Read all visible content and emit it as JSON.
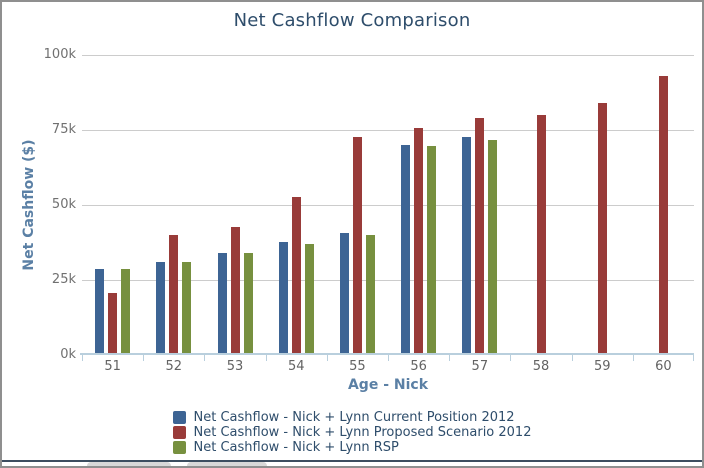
{
  "colors": {
    "series_blue": "#3d6494",
    "series_red": "#993b39",
    "series_green": "#77903f",
    "title_text": "#2e4d6b",
    "axis_title_text": "#5b80a5",
    "tick_text": "#6b6b6b",
    "gridline": "#cccccc",
    "axis_line": "#b9cfdd",
    "legend_text": "#2e4d6b"
  },
  "chart_data": {
    "type": "bar",
    "title": "Net Cashflow Comparison",
    "xlabel": "Age - Nick",
    "ylabel": "Net Cashflow ($)",
    "categories": [
      "51",
      "52",
      "53",
      "54",
      "55",
      "56",
      "57",
      "58",
      "59",
      "60"
    ],
    "ylim": [
      0,
      100000
    ],
    "y_tick_labels": [
      "100k",
      "75k",
      "50k",
      "25k",
      "0k"
    ],
    "grid": "horizontal-on",
    "legend_position": "bottom-center",
    "series": [
      {
        "name": "Net Cashflow - Nick + Lynn Current Position 2012",
        "color": "#3d6494",
        "values": [
          28500,
          31000,
          34000,
          37500,
          40500,
          70000,
          72500,
          null,
          null,
          null
        ]
      },
      {
        "name": "Net Cashflow - Nick + Lynn Proposed Scenario 2012",
        "color": "#993b39",
        "values": [
          20500,
          40000,
          42500,
          52500,
          72500,
          75500,
          79000,
          80000,
          84000,
          93000
        ]
      },
      {
        "name": "Net Cashflow - Nick + Lynn RSP",
        "color": "#77903f",
        "values": [
          28500,
          31000,
          34000,
          37000,
          40000,
          69500,
          71500,
          null,
          null,
          null
        ]
      }
    ]
  }
}
